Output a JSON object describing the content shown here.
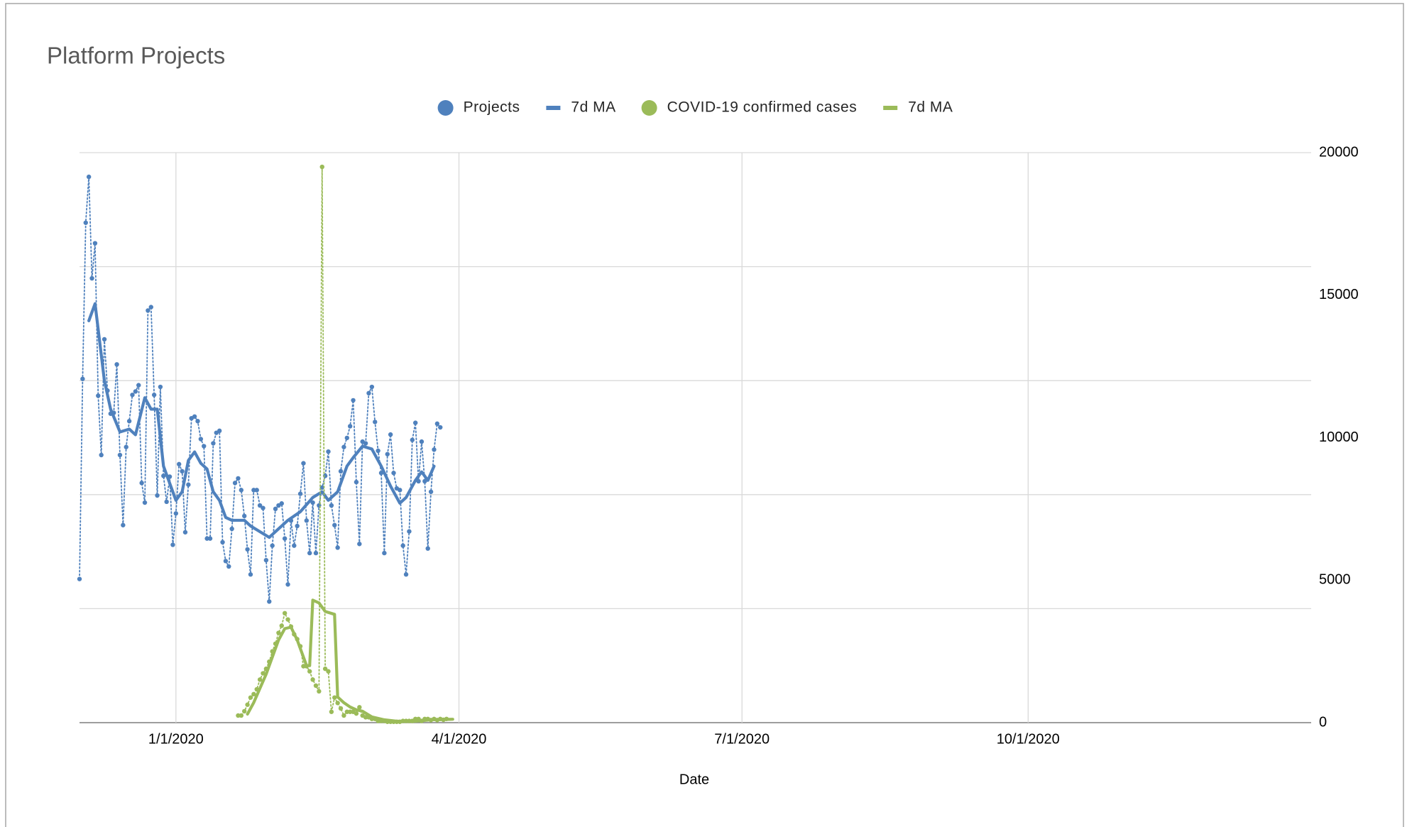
{
  "chart_data": {
    "type": "line",
    "title": "Platform Projects",
    "x_label": "Date",
    "xlim": [
      "12/1/2019",
      "12/31/2020"
    ],
    "xticks": [
      "1/1/2020",
      "4/1/2020",
      "7/1/2020",
      "10/1/2020"
    ],
    "ylim": [
      0,
      20000
    ],
    "yticks": [
      0,
      5000,
      10000,
      15000,
      20000
    ],
    "ygrid": [
      0,
      4000,
      8000,
      12000,
      16000,
      20000
    ],
    "grid": true,
    "legend": "top",
    "series": [
      {
        "name": "Projects",
        "color": "#4f81bd",
        "marker": true,
        "line": "dotted",
        "x": [
          "12/1/2019",
          "12/2/2019",
          "12/3/2019",
          "12/4/2019",
          "12/5/2019",
          "12/6/2019",
          "12/7/2019",
          "12/8/2019",
          "12/9/2019",
          "12/10/2019",
          "12/11/2019",
          "12/12/2019",
          "12/13/2019",
          "12/14/2019",
          "12/15/2019",
          "12/16/2019",
          "12/17/2019",
          "12/18/2019",
          "12/19/2019",
          "12/20/2019",
          "12/21/2019",
          "12/22/2019",
          "12/23/2019",
          "12/24/2019",
          "12/25/2019",
          "12/26/2019",
          "12/27/2019",
          "12/28/2019",
          "12/29/2019",
          "12/30/2019",
          "12/31/2019",
          "1/1/2020",
          "1/2/2020",
          "1/3/2020",
          "1/4/2020",
          "1/5/2020",
          "1/6/2020",
          "1/7/2020",
          "1/8/2020",
          "1/9/2020",
          "1/10/2020",
          "1/11/2020",
          "1/12/2020",
          "1/13/2020",
          "1/14/2020",
          "1/15/2020",
          "1/16/2020",
          "1/17/2020",
          "1/18/2020",
          "1/19/2020",
          "1/20/2020",
          "1/21/2020",
          "1/22/2020",
          "1/23/2020",
          "1/24/2020",
          "1/25/2020",
          "1/26/2020",
          "1/27/2020",
          "1/28/2020",
          "1/29/2020",
          "1/30/2020",
          "1/31/2020",
          "2/1/2020",
          "2/2/2020",
          "2/3/2020",
          "2/4/2020",
          "2/5/2020",
          "2/6/2020",
          "2/7/2020",
          "2/8/2020",
          "2/9/2020",
          "2/10/2020",
          "2/11/2020",
          "2/12/2020",
          "2/13/2020",
          "2/14/2020",
          "2/15/2020",
          "2/16/2020",
          "2/17/2020",
          "2/18/2020",
          "2/19/2020",
          "2/20/2020",
          "2/21/2020",
          "2/22/2020",
          "2/23/2020",
          "2/24/2020",
          "2/25/2020",
          "2/26/2020",
          "2/27/2020",
          "2/28/2020",
          "2/29/2020",
          "3/1/2020",
          "3/2/2020",
          "3/3/2020",
          "3/4/2020",
          "3/5/2020",
          "3/6/2020",
          "3/7/2020",
          "3/8/2020",
          "3/9/2020",
          "3/10/2020",
          "3/11/2020",
          "3/12/2020",
          "3/13/2020",
          "3/14/2020",
          "3/15/2020",
          "3/16/2020",
          "3/17/2020",
          "3/18/2020",
          "3/19/2020",
          "3/20/2020",
          "3/21/2020",
          "3/22/2020",
          "3/23/2020",
          "3/24/2020",
          "3/25/2020",
          "3/26/2020"
        ],
        "values": [
          5040,
          12060,
          17540,
          19150,
          15590,
          16820,
          11470,
          9390,
          13450,
          11650,
          10840,
          10870,
          12570,
          9390,
          6930,
          9670,
          10580,
          11500,
          11620,
          11840,
          8410,
          7720,
          14460,
          14580,
          11500,
          7970,
          11780,
          8660,
          7750,
          8630,
          6240,
          7340,
          9070,
          8820,
          6680,
          8350,
          10680,
          10740,
          10580,
          9950,
          9700,
          6460,
          6460,
          9800,
          10170,
          10240,
          6330,
          5670,
          5480,
          6800,
          8410,
          8570,
          8160,
          7250,
          6080,
          5200,
          8160,
          8160,
          7620,
          7530,
          5700,
          4250,
          6210,
          7500,
          7620,
          7690,
          6460,
          4850,
          7090,
          6210,
          6900,
          8030,
          9100,
          7090,
          5950,
          7720,
          5950,
          7620,
          8250,
          8660,
          9510,
          7620,
          6930,
          6140,
          8820,
          9670,
          9990,
          10400,
          11310,
          8440,
          6270,
          9860,
          9800,
          11560,
          11780,
          10550,
          9540,
          8760,
          5950,
          9420,
          10110,
          8760,
          8220,
          8160,
          6210,
          5200,
          6710,
          9920,
          10520,
          8470,
          9860,
          8470,
          6110,
          8100,
          9580,
          10490,
          10360
        ]
      },
      {
        "name": "7d MA",
        "color": "#4f81bd",
        "marker": false,
        "line": "solid",
        "x": [
          "12/4/2019",
          "12/6/2019",
          "12/9/2019",
          "12/11/2019",
          "12/14/2019",
          "12/17/2019",
          "12/19/2019",
          "12/22/2019",
          "12/24/2019",
          "12/26/2019",
          "12/28/2019",
          "12/30/2019",
          "1/1/2020",
          "1/3/2020",
          "1/5/2020",
          "1/7/2020",
          "1/9/2020",
          "1/11/2020",
          "1/13/2020",
          "1/15/2020",
          "1/17/2020",
          "1/19/2020",
          "1/23/2020",
          "1/25/2020",
          "1/31/2020",
          "2/3/2020",
          "2/6/2020",
          "2/10/2020",
          "2/14/2020",
          "2/17/2020",
          "2/19/2020",
          "2/22/2020",
          "2/25/2020",
          "2/27/2020",
          "3/1/2020",
          "3/4/2020",
          "3/7/2020",
          "3/10/2020",
          "3/13/2020",
          "3/15/2020",
          "3/18/2020",
          "3/20/2020",
          "3/22/2020",
          "3/24/2020"
        ],
        "values": [
          14100,
          14700,
          12000,
          11000,
          10200,
          10300,
          10100,
          11400,
          11000,
          11000,
          9000,
          8400,
          7800,
          8100,
          9200,
          9500,
          9100,
          8900,
          8100,
          7800,
          7200,
          7100,
          7100,
          6900,
          6500,
          6800,
          7100,
          7400,
          7900,
          8100,
          7800,
          8100,
          9000,
          9300,
          9700,
          9600,
          9000,
          8300,
          7700,
          7900,
          8500,
          8800,
          8500,
          9000
        ]
      },
      {
        "name": "COVID-19 confirmed cases",
        "color": "#9bbb59",
        "marker": true,
        "line": "dotted",
        "x": [
          "1/21/2020",
          "1/22/2020",
          "1/23/2020",
          "1/24/2020",
          "1/25/2020",
          "1/26/2020",
          "1/27/2020",
          "1/28/2020",
          "1/29/2020",
          "1/30/2020",
          "1/31/2020",
          "2/1/2020",
          "2/2/2020",
          "2/3/2020",
          "2/4/2020",
          "2/5/2020",
          "2/6/2020",
          "2/7/2020",
          "2/8/2020",
          "2/9/2020",
          "2/10/2020",
          "2/11/2020",
          "2/12/2020",
          "2/13/2020",
          "2/14/2020",
          "2/15/2020",
          "2/16/2020",
          "2/17/2020",
          "2/18/2020",
          "2/19/2020",
          "2/20/2020",
          "2/21/2020",
          "2/22/2020",
          "2/23/2020",
          "2/24/2020",
          "2/25/2020",
          "2/26/2020",
          "2/27/2020",
          "2/28/2020",
          "2/29/2020",
          "3/1/2020",
          "3/2/2020",
          "3/3/2020",
          "3/4/2020",
          "3/5/2020",
          "3/6/2020",
          "3/7/2020",
          "3/8/2020",
          "3/9/2020",
          "3/10/2020",
          "3/11/2020",
          "3/12/2020",
          "3/13/2020",
          "3/14/2020",
          "3/15/2020",
          "3/16/2020",
          "3/17/2020",
          "3/18/2020",
          "3/19/2020",
          "3/20/2020",
          "3/21/2020",
          "3/22/2020",
          "3/23/2020",
          "3/24/2020",
          "3/25/2020",
          "3/26/2020",
          "3/27/2020",
          "3/28/2020"
        ],
        "values": [
          250,
          250,
          400,
          630,
          880,
          1000,
          1170,
          1510,
          1730,
          1890,
          2140,
          2500,
          2770,
          3150,
          3400,
          3840,
          3620,
          3370,
          3100,
          2930,
          2680,
          1980,
          1980,
          1800,
          1510,
          1300,
          1100,
          19500,
          1890,
          1800,
          380,
          880,
          690,
          500,
          250,
          380,
          380,
          380,
          320,
          540,
          250,
          190,
          190,
          130,
          130,
          60,
          60,
          60,
          30,
          30,
          30,
          30,
          30,
          60,
          60,
          60,
          60,
          130,
          130,
          60,
          130,
          130,
          90,
          130,
          90,
          130,
          100,
          130
        ]
      },
      {
        "name": "7d MA",
        "color": "#9bbb59",
        "marker": false,
        "line": "solid",
        "x": [
          "1/24/2020",
          "1/26/2020",
          "1/28/2020",
          "1/30/2020",
          "2/1/2020",
          "2/3/2020",
          "2/5/2020",
          "2/7/2020",
          "2/9/2020",
          "2/11/2020",
          "2/12/2020",
          "2/13/2020",
          "2/14/2020",
          "2/16/2020",
          "2/18/2020",
          "2/21/2020",
          "2/22/2020",
          "2/24/2020",
          "2/26/2020",
          "2/28/2020",
          "3/1/2020",
          "3/4/2020",
          "3/8/2020",
          "3/12/2020",
          "3/18/2020",
          "3/23/2020",
          "3/30/2020"
        ],
        "values": [
          300,
          700,
          1200,
          1700,
          2300,
          2900,
          3300,
          3350,
          2900,
          2300,
          2000,
          2000,
          4300,
          4200,
          3900,
          3800,
          900,
          700,
          550,
          450,
          400,
          200,
          100,
          50,
          50,
          100,
          120
        ]
      }
    ]
  }
}
